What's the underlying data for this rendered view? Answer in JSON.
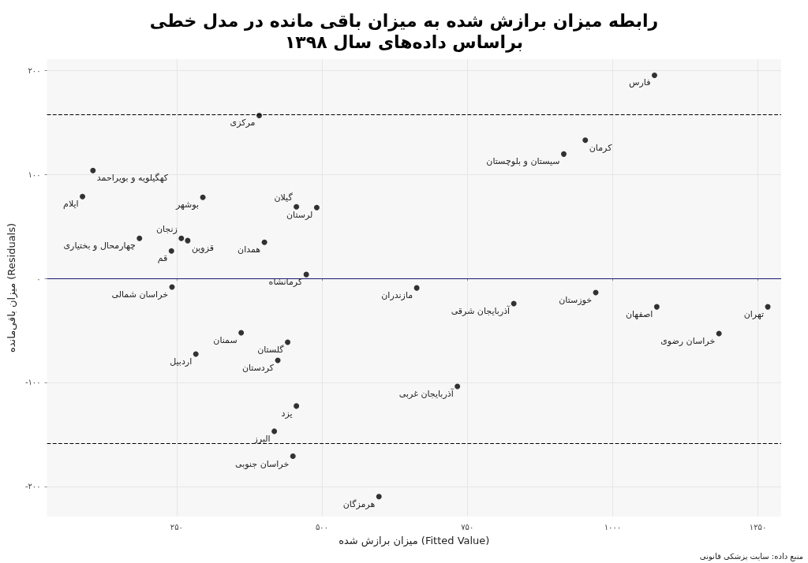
{
  "chart_data": {
    "type": "scatter",
    "title": "رابطه میزان برازش شده به میزان باقی مانده در مدل خطی\nبراساس داده‌های سال ۱۳۹۸",
    "xlabel": "میزان برازش شده (Fitted Value)",
    "ylabel": "میزان باقی‌مانده (Residuals)",
    "x": [
      1072,
      392,
      953,
      916,
      106,
      88,
      295,
      491,
      456,
      186,
      258,
      269,
      241,
      401,
      473,
      242,
      663,
      971,
      830,
      1076,
      1267,
      1183,
      361,
      441,
      283,
      424,
      733,
      456,
      418,
      450,
      598
    ],
    "values": [
      195.5,
      156.8,
      133,
      119.7,
      103.8,
      78.8,
      78,
      68.2,
      69,
      38.6,
      38.6,
      36.4,
      26.5,
      34.8,
      3.8,
      -8.3,
      -9.1,
      -13.6,
      -24.2,
      -27.3,
      -27.3,
      -53,
      -52.3,
      -61.4,
      -72.7,
      -78.8,
      -103.8,
      -122.7,
      -147,
      -171,
      -209.8
    ],
    "color": "#000000",
    "marker": "circle",
    "xlim": [
      27,
      1290
    ],
    "ylim": [
      -229,
      211
    ],
    "xticks": [
      {
        "value": 250,
        "label": "۲۵۰"
      },
      {
        "value": 500,
        "label": "۵۰۰"
      },
      {
        "value": 750,
        "label": "۷۵۰"
      },
      {
        "value": 1000,
        "label": "۱۰۰۰"
      },
      {
        "value": 1250,
        "label": "۱۲۵۰"
      }
    ],
    "yticks": [
      {
        "value": -200,
        "label": "-۲۰۰"
      },
      {
        "value": -100,
        "label": "-۱۰۰"
      },
      {
        "value": 0,
        "label": "۰"
      },
      {
        "value": 100,
        "label": "۱۰۰"
      },
      {
        "value": 200,
        "label": "۲۰۰"
      }
    ],
    "grid": true,
    "ref_lines": [
      {
        "axis": "y",
        "value": 0,
        "color": "#191970",
        "line_style": "solid"
      },
      {
        "axis": "y",
        "value": 158,
        "color": "#000000",
        "line_style": "dashed"
      },
      {
        "axis": "y",
        "value": -159,
        "color": "#000000",
        "line_style": "dashed"
      }
    ],
    "annotations": [
      {
        "text": "فارس",
        "x": 1072,
        "y": 195.5
      },
      {
        "text": "مرکزی",
        "x": 392,
        "y": 156.8
      },
      {
        "text": "کرمان",
        "x": 953,
        "y": 133
      },
      {
        "text": "سیستان و بلوچستان",
        "x": 916,
        "y": 119.7
      },
      {
        "text": "کهگیلویه و بویراحمد",
        "x": 106,
        "y": 103.8
      },
      {
        "text": "ایلام",
        "x": 88,
        "y": 78.8
      },
      {
        "text": "بوشهر",
        "x": 295,
        "y": 78
      },
      {
        "text": "لرستان",
        "x": 491,
        "y": 68.2
      },
      {
        "text": "گیلان",
        "x": 456,
        "y": 69
      },
      {
        "text": "چهارمحال و بختیاری",
        "x": 186,
        "y": 38.6
      },
      {
        "text": "زنجان",
        "x": 258,
        "y": 38.6
      },
      {
        "text": "قزوین",
        "x": 269,
        "y": 36.4
      },
      {
        "text": "قم",
        "x": 241,
        "y": 26.5
      },
      {
        "text": "همدان",
        "x": 401,
        "y": 34.8
      },
      {
        "text": "کرمانشاه",
        "x": 473,
        "y": 3.8
      },
      {
        "text": "خراسان شمالی",
        "x": 242,
        "y": -8.3
      },
      {
        "text": "مازندران",
        "x": 663,
        "y": -9.1
      },
      {
        "text": "خوزستان",
        "x": 971,
        "y": -13.6
      },
      {
        "text": "آذربایجان شرقی",
        "x": 830,
        "y": -24.2
      },
      {
        "text": "اصفهان",
        "x": 1076,
        "y": -27.3
      },
      {
        "text": "تهران",
        "x": 1267,
        "y": -27.3
      },
      {
        "text": "خراسان رضوی",
        "x": 1183,
        "y": -53
      },
      {
        "text": "سمنان",
        "x": 361,
        "y": -52.3
      },
      {
        "text": "گلستان",
        "x": 441,
        "y": -61.4
      },
      {
        "text": "اردبیل",
        "x": 283,
        "y": -72.7
      },
      {
        "text": "کردستان",
        "x": 424,
        "y": -78.8
      },
      {
        "text": "آذربایجان غربی",
        "x": 733,
        "y": -103.8
      },
      {
        "text": "یزد",
        "x": 456,
        "y": -122.7
      },
      {
        "text": "البرز",
        "x": 418,
        "y": -147
      },
      {
        "text": "خراسان جنوبی",
        "x": 450,
        "y": -171
      },
      {
        "text": "هرمزگان",
        "x": 598,
        "y": -209.8
      },
      "منبع داده: سایت پزشکی قانونی"
    ]
  }
}
